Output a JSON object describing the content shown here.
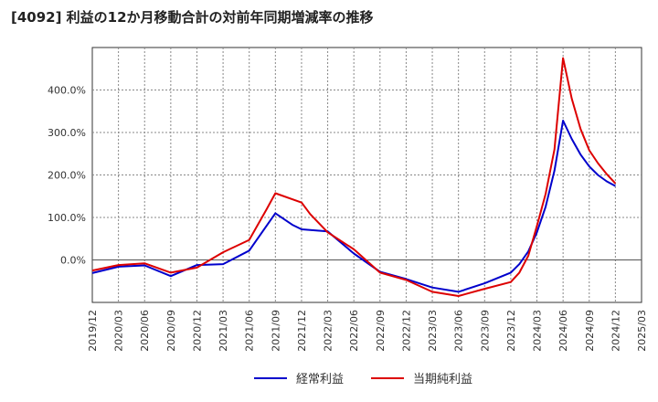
{
  "chart_data": {
    "type": "line",
    "title": "[4092]  利益の12か月移動合計の対前年同期増減率の推移",
    "xlabel": "",
    "ylabel": "",
    "ylim": [
      -100,
      500
    ],
    "yticks": [
      0,
      100,
      200,
      300,
      400
    ],
    "ytick_labels": [
      "0.0%",
      "100.0%",
      "200.0%",
      "300.0%",
      "400.0%"
    ],
    "x_ticks": [
      "2019/12",
      "2020/03",
      "2020/06",
      "2020/09",
      "2020/12",
      "2021/03",
      "2021/06",
      "2021/09",
      "2021/12",
      "2022/03",
      "2022/06",
      "2022/09",
      "2022/12",
      "2023/03",
      "2023/06",
      "2023/09",
      "2023/12",
      "2024/03",
      "2024/06",
      "2024/09",
      "2024/12",
      "2025/03"
    ],
    "grid": true,
    "legend_position": "bottom-center",
    "series": [
      {
        "name": "経常利益",
        "color": "#0000cc",
        "points": [
          [
            0,
            -31
          ],
          [
            1,
            -16
          ],
          [
            2,
            -13
          ],
          [
            3,
            -38
          ],
          [
            4,
            -12
          ],
          [
            5,
            -10
          ],
          [
            6,
            22
          ],
          [
            7,
            110
          ],
          [
            7.67,
            82
          ],
          [
            8,
            72
          ],
          [
            9,
            67
          ],
          [
            10,
            15
          ],
          [
            11,
            -28
          ],
          [
            12,
            -45
          ],
          [
            13,
            -65
          ],
          [
            14,
            -75
          ],
          [
            15,
            -55
          ],
          [
            16,
            -30
          ],
          [
            16.33,
            -10
          ],
          [
            16.67,
            20
          ],
          [
            17,
            65
          ],
          [
            17.33,
            125
          ],
          [
            17.67,
            210
          ],
          [
            18,
            328
          ],
          [
            18.33,
            285
          ],
          [
            18.67,
            248
          ],
          [
            19,
            220
          ],
          [
            19.33,
            200
          ],
          [
            19.67,
            185
          ],
          [
            20,
            174
          ]
        ]
      },
      {
        "name": "当期純利益",
        "color": "#dd0000",
        "points": [
          [
            0,
            -25
          ],
          [
            1,
            -12
          ],
          [
            2,
            -8
          ],
          [
            3,
            -30
          ],
          [
            4,
            -18
          ],
          [
            5,
            18
          ],
          [
            6,
            47
          ],
          [
            6.67,
            120
          ],
          [
            7,
            157
          ],
          [
            8,
            135
          ],
          [
            8.33,
            108
          ],
          [
            9,
            65
          ],
          [
            10,
            25
          ],
          [
            11,
            -30
          ],
          [
            12,
            -47
          ],
          [
            13,
            -75
          ],
          [
            14,
            -85
          ],
          [
            15,
            -68
          ],
          [
            16,
            -52
          ],
          [
            16.33,
            -30
          ],
          [
            16.67,
            10
          ],
          [
            17,
            80
          ],
          [
            17.33,
            155
          ],
          [
            17.67,
            260
          ],
          [
            18,
            475
          ],
          [
            18.33,
            380
          ],
          [
            18.67,
            308
          ],
          [
            19,
            258
          ],
          [
            19.33,
            228
          ],
          [
            19.67,
            202
          ],
          [
            20,
            180
          ]
        ]
      }
    ]
  }
}
